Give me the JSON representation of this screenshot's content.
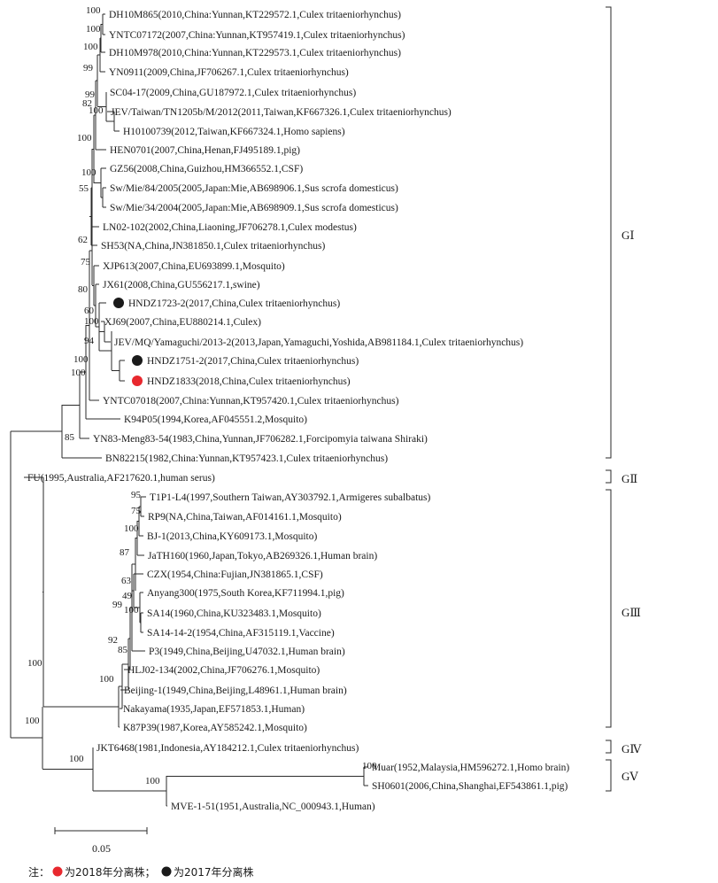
{
  "tree": {
    "leaves": [
      "DH10M865(2010,China:Yunnan,KT229572.1,Culex tritaeniorhynchus)",
      "YNTC07172(2007,China:Yunnan,KT957419.1,Culex tritaeniorhynchus)",
      "DH10M978(2010,China:Yunnan,KT229573.1,Culex tritaeniorhynchus)",
      "YN0911(2009,China,JF706267.1,Culex tritaeniorhynchus)",
      "SC04-17(2009,China,GU187972.1,Culex tritaeniorhynchus)",
      "JEV/Taiwan/TN1205b/M/2012(2011,Taiwan,KF667326.1,Culex tritaeniorhynchus)",
      "H10100739(2012,Taiwan,KF667324.1,Homo sapiens)",
      "HEN0701(2007,China,Henan,FJ495189.1,pig)",
      "GZ56(2008,China,Guizhou,HM366552.1,CSF)",
      "Sw/Mie/84/2005(2005,Japan:Mie,AB698906.1,Sus scrofa domesticus)",
      "Sw/Mie/34/2004(2005,Japan:Mie,AB698909.1,Sus scrofa domesticus)",
      "LN02-102(2002,China,Liaoning,JF706278.1,Culex modestus)",
      "SH53(NA,China,JN381850.1,Culex tritaeniorhynchus)",
      "XJP613(2007,China,EU693899.1,Mosquito)",
      "JX61(2008,China,GU556217.1,swine)",
      "HNDZ1723-2(2017,China,Culex tritaeniorhynchus)",
      "XJ69(2007,China,EU880214.1,Culex)",
      "JEV/MQ/Yamaguchi/2013-2(2013,Japan,Yamaguchi,Yoshida,AB981184.1,Culex tritaeniorhynchus)",
      "HNDZ1751-2(2017,China,Culex tritaeniorhynchus)",
      "HNDZ1833(2018,China,Culex tritaeniorhynchus)",
      "YNTC07018(2007,China:Yunnan,KT957420.1,Culex tritaeniorhynchus)",
      "K94P05(1994,Korea,AF045551.2,Mosquito)",
      "YN83-Meng83-54(1983,China,Yunnan,JF706282.1,Forcipomyia taiwana Shiraki)",
      "BN82215(1982,China:Yunnan,KT957423.1,Culex tritaeniorhynchus)",
      "FU(1995,Australia,AF217620.1,human serus)",
      "T1P1-L4(1997,Southern Taiwan,AY303792.1,Armigeres subalbatus)",
      "RP9(NA,China,Taiwan,AF014161.1,Mosquito)",
      "BJ-1(2013,China,KY609173.1,Mosquito)",
      "JaTH160(1960,Japan,Tokyo,AB269326.1,Human brain)",
      "CZX(1954,China:Fujian,JN381865.1,CSF)",
      "Anyang300(1975,South Korea,KF711994.1,pig)",
      "SA14(1960,China,KU323483.1,Mosquito)",
      "SA14-14-2(1954,China,AF315119.1,Vaccine)",
      "P3(1949,China,Beijing,U47032.1,Human brain)",
      "HLJ02-134(2002,China,JF706276.1,Mosquito)",
      "Beijing-1(1949,China,Beijing,L48961.1,Human brain)",
      "Nakayama(1935,Japan,EF571853.1,Human)",
      "K87P39(1987,Korea,AY585242.1,Mosquito)",
      "JKT6468(1981,Indonesia,AY184212.1,Culex tritaeniorhynchus)",
      "Muar(1952,Malaysia,HM596272.1,Homo brain)",
      "SH0601(2006,China,Shanghai,EF543861.1,pig)",
      "MVE-1-51(1951,Australia,NC_000943.1,Human)"
    ],
    "bootstraps": [
      "100",
      "100",
      "100",
      "99",
      "99",
      "82",
      "100",
      "100",
      "100",
      "55",
      "62",
      "75",
      "80",
      "60",
      "100",
      "94",
      "100",
      "100",
      "85",
      "100",
      "95",
      "75",
      "100",
      "87",
      "63",
      "49",
      "100",
      "99",
      "85",
      "92",
      "100",
      "100",
      "100",
      "100",
      "100"
    ],
    "markers": [
      {
        "leaf": "HNDZ1723-2(2017,China,Culex tritaeniorhynchus)",
        "color": "#1a1a1a"
      },
      {
        "leaf": "HNDZ1751-2(2017,China,Culex tritaeniorhynchus)",
        "color": "#1a1a1a"
      },
      {
        "leaf": "HNDZ1833(2018,China,Culex tritaeniorhynchus)",
        "color": "#e8282e"
      }
    ]
  },
  "genotypes": [
    "GⅠ",
    "GⅡ",
    "GⅢ",
    "GⅣ",
    "GⅤ"
  ],
  "scale_label": "0.05",
  "legend": {
    "prefix": "注：",
    "red_text": "为2018年分离株；",
    "black_text": "为2017年分离株",
    "red_color": "#e8282e",
    "black_color": "#1a1a1a"
  }
}
